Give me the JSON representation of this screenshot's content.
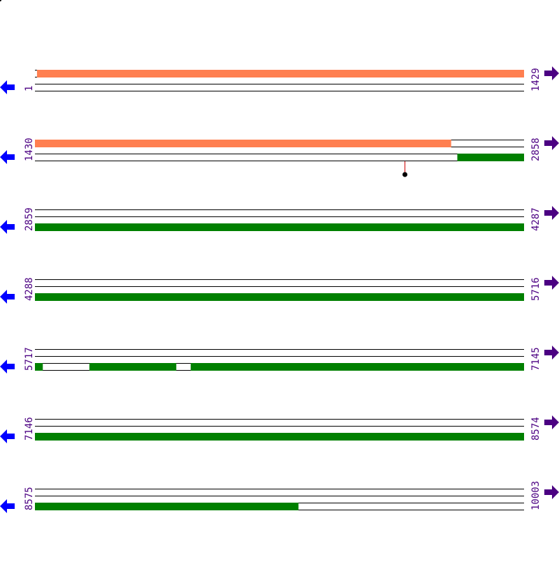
{
  "colors": {
    "strand_line": "#000000",
    "orange_feature": "#ff7f50",
    "green_feature": "#008000",
    "label": "#4b0082",
    "left_arrow": "#0000ff",
    "right_arrow": "#4b0082",
    "lollipop_stick": "#cc0000",
    "lollipop_head": "#000000"
  },
  "bp_per_row": 1429,
  "rows": [
    {
      "start": "1",
      "end": "1429",
      "start_bp": 1,
      "end_bp": 1429,
      "upper_lines": false,
      "features": [
        {
          "track": "upper",
          "type": "orange",
          "from": 7,
          "to": 1429
        }
      ]
    },
    {
      "start": "1430",
      "end": "2858",
      "start_bp": 1430,
      "end_bp": 2858,
      "upper_lines": true,
      "features": [
        {
          "track": "upper",
          "type": "orange",
          "from": 1430,
          "to": 2645
        },
        {
          "track": "lower",
          "type": "green",
          "from": 2664,
          "to": 2858
        }
      ],
      "lollipops": [
        {
          "position": 2510
        }
      ]
    },
    {
      "start": "2859",
      "end": "4287",
      "start_bp": 2859,
      "end_bp": 4287,
      "upper_lines": true,
      "features": [
        {
          "track": "lower",
          "type": "green",
          "from": 2859,
          "to": 4287
        }
      ]
    },
    {
      "start": "4288",
      "end": "5716",
      "start_bp": 4288,
      "end_bp": 5716,
      "upper_lines": true,
      "features": [
        {
          "track": "lower",
          "type": "green",
          "from": 4288,
          "to": 5716
        }
      ]
    },
    {
      "start": "5717",
      "end": "7145",
      "start_bp": 5717,
      "end_bp": 7145,
      "upper_lines": true,
      "features": [
        {
          "track": "lower",
          "type": "green",
          "from": 5717,
          "to": 5739
        },
        {
          "track": "lower",
          "type": "green",
          "from": 5876,
          "to": 6129
        },
        {
          "track": "lower",
          "type": "green",
          "from": 6172,
          "to": 7145
        }
      ]
    },
    {
      "start": "7146",
      "end": "8574",
      "start_bp": 7146,
      "end_bp": 8574,
      "upper_lines": true,
      "features": [
        {
          "track": "lower",
          "type": "green",
          "from": 7146,
          "to": 8574
        }
      ]
    },
    {
      "start": "8575",
      "end": "10003",
      "start_bp": 8575,
      "end_bp": 10003,
      "upper_lines": true,
      "features": [
        {
          "track": "lower",
          "type": "green",
          "from": 8575,
          "to": 9344
        }
      ]
    }
  ]
}
